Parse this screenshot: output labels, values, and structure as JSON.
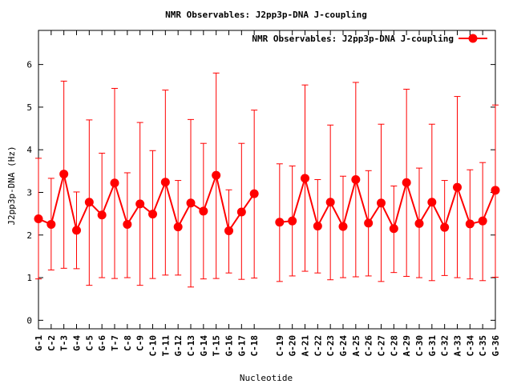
{
  "chart_data": {
    "type": "line",
    "title": "NMR Observables: J2pp3p-DNA J-coupling",
    "xlabel": "Nucleotide",
    "ylabel": "J2pp3p-DNA (Hz)",
    "ylim": [
      -0.2,
      6.8
    ],
    "yticks": [
      0,
      1,
      2,
      3,
      4,
      5,
      6
    ],
    "grid": false,
    "legend_position": "top-right",
    "series": [
      {
        "name": "NMR Observables: J2pp3p-DNA J-coupling",
        "color": "#ff0000",
        "segments": [
          {
            "x": [
              "G-1",
              "C-2",
              "T-3",
              "G-4",
              "C-5",
              "G-6",
              "T-7",
              "C-8",
              "C-9",
              "C-10",
              "T-11",
              "G-12",
              "C-13",
              "G-14",
              "T-15",
              "G-16",
              "G-17",
              "C-18"
            ],
            "y": [
              2.38,
              2.25,
              3.43,
              2.11,
              2.77,
              2.47,
              3.22,
              2.25,
              2.73,
              2.49,
              3.24,
              2.19,
              2.75,
              2.56,
              3.4,
              2.1,
              2.54,
              2.97
            ],
            "y_low": [
              0.97,
              1.18,
              1.22,
              1.21,
              0.82,
              1.0,
              0.98,
              1.0,
              0.82,
              0.98,
              1.06,
              1.06,
              0.78,
              0.97,
              0.98,
              1.11,
              0.96,
              0.99
            ],
            "y_high": [
              3.8,
              3.33,
              5.61,
              3.01,
              4.7,
              3.92,
              5.44,
              3.46,
              4.64,
              3.98,
              5.4,
              3.28,
              4.71,
              4.15,
              5.8,
              3.06,
              4.15,
              4.93
            ]
          },
          {
            "x": [
              "C-19",
              "G-20",
              "A-21",
              "C-22",
              "C-23",
              "G-24",
              "A-25",
              "C-26",
              "C-27",
              "C-28",
              "A-29",
              "C-30",
              "G-31",
              "C-32",
              "A-33",
              "C-34",
              "C-35",
              "G-36"
            ],
            "y": [
              2.3,
              2.33,
              3.33,
              2.21,
              2.77,
              2.2,
              3.3,
              2.28,
              2.75,
              2.15,
              3.23,
              2.27,
              2.77,
              2.18,
              3.12,
              2.26,
              2.33,
              3.05
            ],
            "y_low": [
              0.91,
              1.04,
              1.15,
              1.11,
              0.95,
              1.0,
              1.02,
              1.04,
              0.91,
              1.12,
              1.03,
              1.0,
              0.93,
              1.05,
              1.0,
              0.97,
              0.93,
              1.01
            ],
            "y_high": [
              3.67,
              3.62,
              5.52,
              3.3,
              4.58,
              3.38,
              5.58,
              3.51,
              4.6,
              3.15,
              5.42,
              3.57,
              4.6,
              3.28,
              5.25,
              3.53,
              3.7,
              5.05
            ]
          }
        ]
      }
    ],
    "categories": [
      "G-1",
      "C-2",
      "T-3",
      "G-4",
      "C-5",
      "G-6",
      "T-7",
      "C-8",
      "C-9",
      "C-10",
      "T-11",
      "G-12",
      "C-13",
      "G-14",
      "T-15",
      "G-16",
      "G-17",
      "C-18",
      "",
      "C-19",
      "G-20",
      "A-21",
      "C-22",
      "C-23",
      "G-24",
      "A-25",
      "C-26",
      "C-27",
      "C-28",
      "A-29",
      "C-30",
      "G-31",
      "C-32",
      "A-33",
      "C-34",
      "C-35",
      "G-36"
    ]
  }
}
